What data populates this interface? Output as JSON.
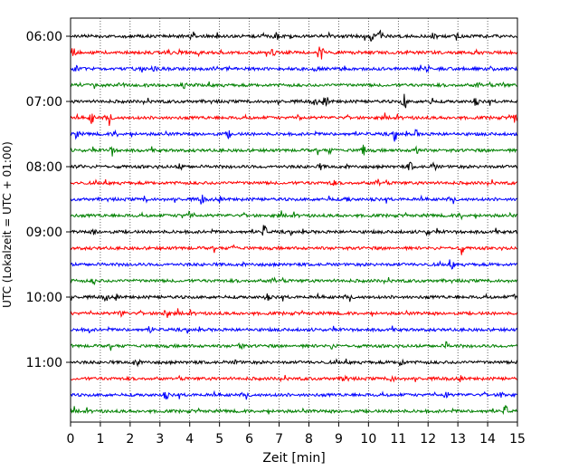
{
  "chart_data": {
    "type": "line",
    "title": "",
    "xlabel": "Zeit  [min]",
    "ylabel": "UTC (Lokalzeit = UTC + 01:00)",
    "xlim": [
      0,
      15
    ],
    "x_ticks": [
      "0",
      "1",
      "2",
      "3",
      "4",
      "5",
      "6",
      "7",
      "8",
      "9",
      "10",
      "11",
      "12",
      "13",
      "14",
      "15"
    ],
    "y_ticks": [
      "06:00",
      "07:00",
      "08:00",
      "09:00",
      "10:00",
      "11:00"
    ],
    "y_tick_rows": [
      0,
      4,
      8,
      12,
      16,
      20
    ],
    "grid": "vertical dotted lines at each minute",
    "row_interval_minutes": 15,
    "series_colors": [
      "#000000",
      "#ff0000",
      "#0000ff",
      "#008000"
    ],
    "series": [
      {
        "start": "06:00",
        "color": "#000000",
        "events": [
          [
            4.1,
            0.5
          ],
          [
            6.9,
            0.5
          ],
          [
            10.1,
            0.6
          ],
          [
            10.4,
            0.5
          ],
          [
            12.2,
            0.4
          ],
          [
            13.0,
            0.3
          ]
        ]
      },
      {
        "start": "06:15",
        "color": "#ff0000",
        "events": [
          [
            0.1,
            0.6
          ],
          [
            8.4,
            0.9
          ],
          [
            3.3,
            0.3
          ],
          [
            6.8,
            0.3
          ]
        ]
      },
      {
        "start": "06:30",
        "color": "#0000ff",
        "events": [
          [
            0.2,
            0.3
          ],
          [
            2.8,
            0.3
          ],
          [
            4.9,
            0.3
          ],
          [
            8.2,
            0.3
          ],
          [
            12.0,
            0.3
          ]
        ]
      },
      {
        "start": "06:45",
        "color": "#008000",
        "events": [
          [
            1.7,
            0.3
          ],
          [
            3.8,
            0.3
          ],
          [
            13.7,
            0.4
          ],
          [
            14.5,
            0.3
          ]
        ]
      },
      {
        "start": "07:00",
        "color": "#000000",
        "events": [
          [
            8.2,
            0.4
          ],
          [
            8.6,
            0.4
          ],
          [
            11.2,
            1.0
          ],
          [
            12.1,
            0.4
          ],
          [
            13.6,
            0.4
          ]
        ]
      },
      {
        "start": "07:15",
        "color": "#ff0000",
        "events": [
          [
            0.7,
            0.7
          ],
          [
            1.3,
            0.4
          ],
          [
            7.7,
            0.3
          ],
          [
            14.9,
            0.6
          ]
        ]
      },
      {
        "start": "07:30",
        "color": "#0000ff",
        "events": [
          [
            0.2,
            0.5
          ],
          [
            1.5,
            0.3
          ],
          [
            5.3,
            0.4
          ],
          [
            10.9,
            0.6
          ],
          [
            11.6,
            0.4
          ]
        ]
      },
      {
        "start": "07:45",
        "color": "#008000",
        "events": [
          [
            1.4,
            0.5
          ],
          [
            9.8,
            0.9
          ],
          [
            11.6,
            0.6
          ],
          [
            8.7,
            0.3
          ]
        ]
      },
      {
        "start": "08:00",
        "color": "#000000",
        "events": [
          [
            0.3,
            0.3
          ],
          [
            3.7,
            0.4
          ],
          [
            8.4,
            0.3
          ],
          [
            11.4,
            0.5
          ],
          [
            12.2,
            0.4
          ]
        ]
      },
      {
        "start": "08:15",
        "color": "#ff0000",
        "events": [
          [
            10.3,
            0.5
          ],
          [
            8.8,
            0.3
          ]
        ]
      },
      {
        "start": "08:30",
        "color": "#0000ff",
        "events": [
          [
            4.4,
            0.6
          ],
          [
            2.5,
            0.3
          ],
          [
            8.7,
            0.3
          ],
          [
            9.3,
            0.3
          ]
        ]
      },
      {
        "start": "08:45",
        "color": "#008000",
        "events": [
          [
            4.0,
            0.4
          ],
          [
            3.7,
            0.3
          ],
          [
            13.1,
            0.3
          ]
        ]
      },
      {
        "start": "09:00",
        "color": "#000000",
        "events": [
          [
            6.5,
            0.8
          ],
          [
            0.8,
            0.3
          ],
          [
            12.0,
            0.3
          ]
        ]
      },
      {
        "start": "09:15",
        "color": "#ff0000",
        "events": [
          [
            13.1,
            0.8
          ],
          [
            5.5,
            0.3
          ]
        ]
      },
      {
        "start": "09:30",
        "color": "#0000ff",
        "events": [
          [
            12.8,
            0.4
          ]
        ]
      },
      {
        "start": "09:45",
        "color": "#008000",
        "events": [
          [
            6.8,
            0.4
          ],
          [
            0.8,
            0.3
          ]
        ]
      },
      {
        "start": "10:00",
        "color": "#000000",
        "events": [
          [
            1.2,
            0.4
          ],
          [
            6.6,
            0.3
          ],
          [
            14.9,
            0.3
          ]
        ]
      },
      {
        "start": "10:15",
        "color": "#ff0000",
        "events": [
          [
            1.7,
            0.5
          ],
          [
            3.2,
            0.7
          ]
        ]
      },
      {
        "start": "10:30",
        "color": "#0000ff",
        "events": [
          [
            2.7,
            0.3
          ],
          [
            0.6,
            0.3
          ]
        ]
      },
      {
        "start": "10:45",
        "color": "#008000",
        "events": [
          [
            5.7,
            0.6
          ],
          [
            12.6,
            0.4
          ],
          [
            8.8,
            0.3
          ]
        ]
      },
      {
        "start": "11:00",
        "color": "#000000",
        "events": [
          [
            2.2,
            0.5
          ],
          [
            5.6,
            0.4
          ],
          [
            11.1,
            0.5
          ]
        ]
      },
      {
        "start": "11:15",
        "color": "#ff0000",
        "events": [
          [
            9.2,
            0.4
          ],
          [
            10.8,
            0.4
          ]
        ]
      },
      {
        "start": "11:30",
        "color": "#0000ff",
        "events": [
          [
            3.2,
            0.4
          ],
          [
            12.6,
            0.4
          ],
          [
            14.5,
            0.4
          ]
        ]
      },
      {
        "start": "11:45",
        "color": "#008000",
        "events": [
          [
            14.6,
            0.6
          ]
        ]
      }
    ]
  }
}
